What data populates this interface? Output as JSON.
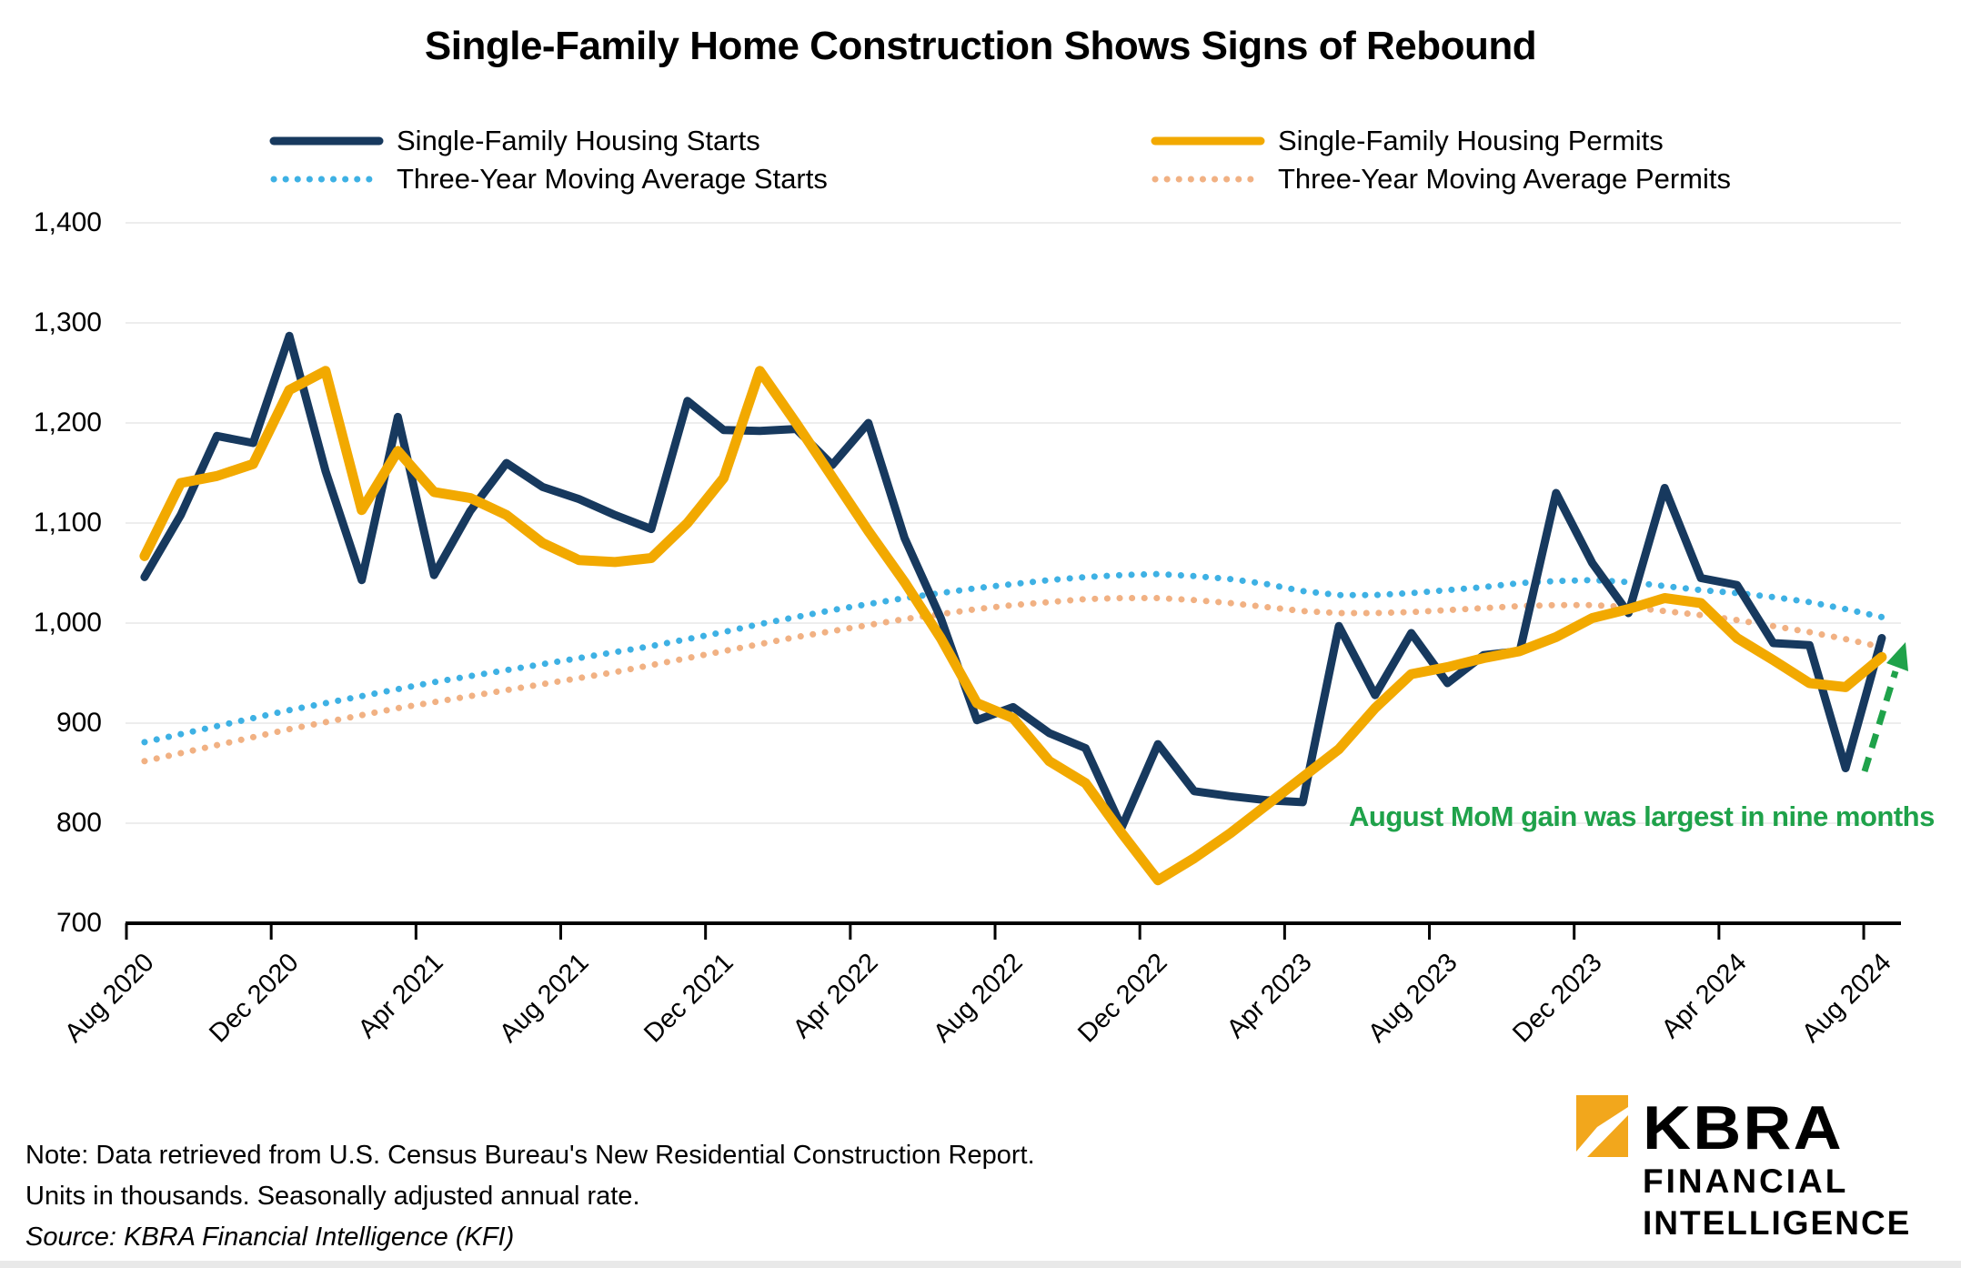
{
  "title": "Single-Family Home Construction Shows Signs of Rebound",
  "annotation": {
    "text": "August MoM gain was largest in nine months",
    "color": "#1fa24a"
  },
  "notes": {
    "line1": "Note: Data retrieved from U.S. Census Bureau's New Residential Construction Report.",
    "line2": "Units in thousands. Seasonally adjusted annual rate.",
    "source": "Source: KBRA Financial Intelligence  (KFI)"
  },
  "logo": {
    "name": "KBRA",
    "line2": "FINANCIAL",
    "line3": "INTELLIGENCE",
    "accent": "#f2a71c"
  },
  "colors": {
    "grid": "#ededed",
    "axis": "#000000"
  },
  "chart_data": {
    "type": "line",
    "title": "Single-Family Home Construction Shows Signs of Rebound",
    "xlabel": "",
    "ylabel": "",
    "ylim": [
      700,
      1400
    ],
    "grid": "horizontal",
    "legend_position": "top",
    "y_ticks": [
      "700",
      "800",
      "900",
      "1,000",
      "1,100",
      "1,200",
      "1,300",
      "1,400"
    ],
    "x_tick_labels": [
      "Aug 2020",
      "Dec 2020",
      "Apr 2021",
      "Aug 2021",
      "Dec 2021",
      "Apr 2022",
      "Aug 2022",
      "Dec 2022",
      "Apr 2023",
      "Aug 2023",
      "Dec 2023",
      "Apr 2024",
      "Aug 2024"
    ],
    "categories": [
      "Aug 2020",
      "Sep 2020",
      "Oct 2020",
      "Nov 2020",
      "Dec 2020",
      "Jan 2021",
      "Feb 2021",
      "Mar 2021",
      "Apr 2021",
      "May 2021",
      "Jun 2021",
      "Jul 2021",
      "Aug 2021",
      "Sep 2021",
      "Oct 2021",
      "Nov 2021",
      "Dec 2021",
      "Jan 2022",
      "Feb 2022",
      "Mar 2022",
      "Apr 2022",
      "May 2022",
      "Jun 2022",
      "Jul 2022",
      "Aug 2022",
      "Sep 2022",
      "Oct 2022",
      "Nov 2022",
      "Dec 2022",
      "Jan 2023",
      "Feb 2023",
      "Mar 2023",
      "Apr 2023",
      "May 2023",
      "Jun 2023",
      "Jul 2023",
      "Aug 2023",
      "Sep 2023",
      "Oct 2023",
      "Nov 2023",
      "Dec 2023",
      "Jan 2024",
      "Feb 2024",
      "Mar 2024",
      "Apr 2024",
      "May 2024",
      "Jun 2024",
      "Jul 2024",
      "Aug 2024"
    ],
    "series": [
      {
        "name": "Single-Family Housing Starts",
        "style": "solid",
        "color": "#17395e",
        "values": [
          1046,
          1108,
          1187,
          1180,
          1287,
          1152,
          1043,
          1206,
          1048,
          1112,
          1160,
          1136,
          1124,
          1108,
          1094,
          1222,
          1193,
          1192,
          1194,
          1158,
          1200,
          1085,
          1005,
          903,
          916,
          890,
          875,
          796,
          879,
          832,
          827,
          823,
          821,
          997,
          928,
          990,
          940,
          968,
          972,
          1130,
          1060,
          1010,
          1135,
          1045,
          1038,
          980,
          978,
          855,
          985
        ]
      },
      {
        "name": "Single-Family Housing Permits",
        "style": "solid",
        "color": "#f2a900",
        "values": [
          1067,
          1140,
          1147,
          1159,
          1233,
          1252,
          1113,
          1172,
          1131,
          1125,
          1108,
          1080,
          1063,
          1061,
          1065,
          1100,
          1145,
          1252,
          1200,
          1146,
          1092,
          1041,
          985,
          920,
          905,
          862,
          840,
          790,
          743,
          765,
          790,
          818,
          846,
          874,
          915,
          949,
          956,
          965,
          972,
          986,
          1005,
          1014,
          1025,
          1020,
          985,
          963,
          940,
          936,
          966
        ]
      },
      {
        "name": "Three-Year Moving Average Starts",
        "style": "dotted",
        "color": "#3eb1e4",
        "values": [
          881,
          889,
          897,
          905,
          913,
          920,
          927,
          934,
          941,
          947,
          953,
          959,
          965,
          971,
          977,
          984,
          991,
          999,
          1006,
          1013,
          1019,
          1025,
          1030,
          1035,
          1039,
          1043,
          1046,
          1048,
          1049,
          1047,
          1044,
          1039,
          1032,
          1028,
          1028,
          1030,
          1033,
          1036,
          1040,
          1042,
          1043,
          1041,
          1037,
          1033,
          1030,
          1026,
          1021,
          1014,
          1006
        ]
      },
      {
        "name": "Three-Year Moving Average Permits",
        "style": "dotted",
        "color": "#f1b183",
        "values": [
          862,
          870,
          878,
          886,
          894,
          901,
          908,
          915,
          921,
          927,
          933,
          939,
          945,
          951,
          958,
          965,
          972,
          979,
          986,
          992,
          998,
          1004,
          1009,
          1014,
          1018,
          1021,
          1024,
          1025,
          1025,
          1023,
          1020,
          1016,
          1012,
          1010,
          1010,
          1011,
          1013,
          1015,
          1017,
          1018,
          1018,
          1016,
          1012,
          1008,
          1003,
          997,
          991,
          984,
          976
        ]
      }
    ]
  }
}
